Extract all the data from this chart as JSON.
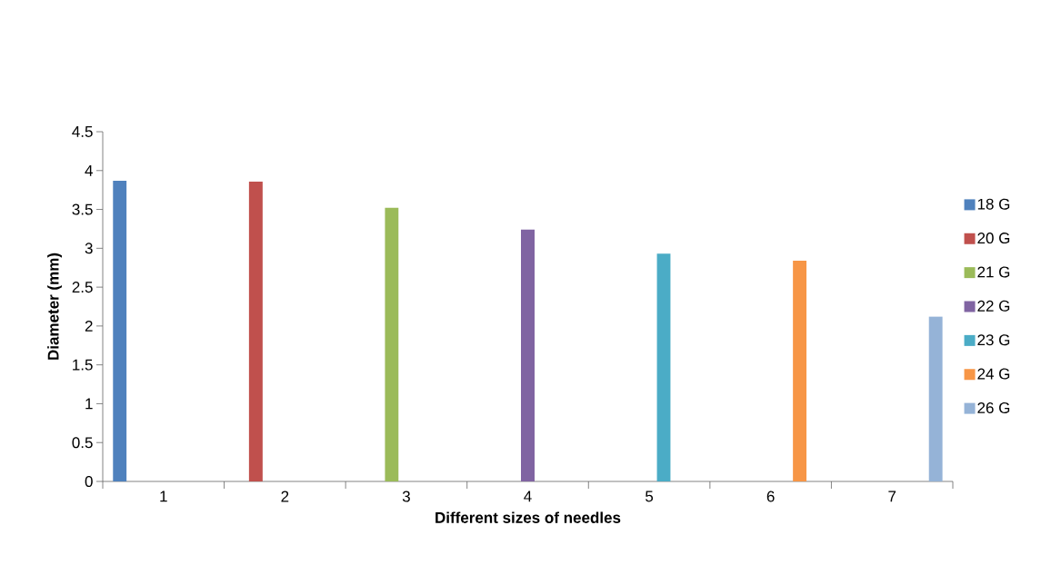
{
  "chart_data": {
    "type": "bar",
    "xlabel": "Different sizes of needles",
    "ylabel": "Diameter (mm)",
    "categories": [
      "1",
      "2",
      "3",
      "4",
      "5",
      "6",
      "7"
    ],
    "series": [
      {
        "name": "18 G",
        "color": "#4f81bd",
        "values": [
          3.87,
          null,
          null,
          null,
          null,
          null,
          null
        ]
      },
      {
        "name": "20 G",
        "color": "#c0504d",
        "values": [
          null,
          3.86,
          null,
          null,
          null,
          null,
          null
        ]
      },
      {
        "name": "21 G",
        "color": "#9bbb59",
        "values": [
          null,
          null,
          3.52,
          null,
          null,
          null,
          null
        ]
      },
      {
        "name": "22 G",
        "color": "#8064a2",
        "values": [
          null,
          null,
          null,
          3.24,
          null,
          null,
          null
        ]
      },
      {
        "name": "23 G",
        "color": "#4bacc6",
        "values": [
          null,
          null,
          null,
          null,
          2.93,
          null,
          null
        ]
      },
      {
        "name": "24 G",
        "color": "#f79646",
        "values": [
          null,
          null,
          null,
          null,
          null,
          2.84,
          null
        ]
      },
      {
        "name": "26 G",
        "color": "#95b3d7",
        "values": [
          null,
          null,
          null,
          null,
          null,
          null,
          2.12
        ]
      }
    ],
    "ylim": [
      0,
      4.5
    ],
    "yticks": [
      0,
      0.5,
      1,
      1.5,
      2,
      2.5,
      3,
      3.5,
      4,
      4.5
    ],
    "legend": "right",
    "grid": false
  }
}
